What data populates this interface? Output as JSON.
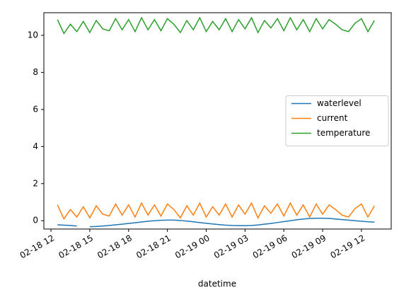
{
  "chart_data": {
    "type": "line",
    "x": [
      0.5,
      1,
      1.5,
      2,
      2.5,
      3,
      3.5,
      4,
      4.5,
      5,
      5.5,
      6,
      6.5,
      7,
      7.5,
      8,
      8.5,
      9,
      9.5,
      10,
      10.5,
      11,
      11.5,
      12,
      12.5,
      13,
      13.5,
      14,
      14.5,
      15,
      15.5,
      16,
      16.5,
      17,
      17.5,
      18,
      18.5,
      19,
      19.5,
      20,
      20.5,
      21,
      21.5,
      22,
      22.5,
      23,
      23.5,
      24,
      24.5,
      25
    ],
    "series": [
      {
        "name": "waterlevel",
        "color": "#1f77b4",
        "values": [
          -0.22,
          -0.24,
          -0.26,
          -0.29,
          null,
          -0.32,
          -0.31,
          -0.29,
          -0.26,
          -0.22,
          -0.19,
          -0.15,
          -0.11,
          -0.07,
          -0.03,
          0.0,
          0.02,
          0.03,
          0.03,
          0.01,
          -0.02,
          -0.06,
          -0.1,
          -0.14,
          -0.18,
          -0.21,
          -0.24,
          -0.26,
          -0.27,
          -0.27,
          -0.26,
          -0.23,
          -0.19,
          -0.15,
          -0.1,
          -0.05,
          0.0,
          0.05,
          0.09,
          0.12,
          0.13,
          0.13,
          0.12,
          0.09,
          0.06,
          0.03,
          0.0,
          -0.03,
          -0.06,
          -0.08
        ]
      },
      {
        "name": "current",
        "color": "#ff7f0e",
        "values": [
          0.85,
          0.1,
          0.6,
          0.2,
          0.75,
          0.15,
          0.8,
          0.35,
          0.25,
          0.9,
          0.3,
          0.85,
          0.2,
          0.95,
          0.3,
          0.85,
          0.25,
          0.9,
          0.6,
          0.15,
          0.8,
          0.3,
          0.95,
          0.2,
          0.75,
          0.3,
          0.9,
          0.2,
          0.85,
          0.35,
          0.95,
          0.15,
          0.8,
          0.4,
          0.9,
          0.25,
          0.95,
          0.3,
          0.85,
          0.2,
          0.9,
          0.35,
          0.85,
          0.6,
          0.3,
          0.2,
          0.65,
          0.9,
          0.2,
          0.8
        ]
      },
      {
        "name": "temperature",
        "color": "#2ca02c",
        "values": [
          10.85,
          10.1,
          10.6,
          10.2,
          10.75,
          10.15,
          10.8,
          10.35,
          10.25,
          10.9,
          10.3,
          10.85,
          10.2,
          10.95,
          10.3,
          10.85,
          10.25,
          10.9,
          10.6,
          10.15,
          10.8,
          10.3,
          10.95,
          10.2,
          10.75,
          10.3,
          10.9,
          10.2,
          10.85,
          10.35,
          10.95,
          10.15,
          10.8,
          10.4,
          10.9,
          10.25,
          10.95,
          10.3,
          10.85,
          10.2,
          10.9,
          10.35,
          10.85,
          10.6,
          10.3,
          10.2,
          10.65,
          10.9,
          10.2,
          10.8
        ]
      }
    ],
    "xlabel": "datetime",
    "xlim": [
      -0.55,
      26.3
    ],
    "xticks": [
      {
        "value": 0,
        "label": "02-18 12"
      },
      {
        "value": 3,
        "label": "02-18 15"
      },
      {
        "value": 6,
        "label": "02-18 18"
      },
      {
        "value": 9,
        "label": "02-18 21"
      },
      {
        "value": 12,
        "label": "02-19 00"
      },
      {
        "value": 15,
        "label": "02-19 03"
      },
      {
        "value": 18,
        "label": "02-19 06"
      },
      {
        "value": 21,
        "label": "02-19 09"
      },
      {
        "value": 24,
        "label": "02-19 12"
      }
    ],
    "ylim": [
      -0.45,
      11.22
    ],
    "yticks": [
      0,
      2,
      4,
      6,
      8,
      10
    ],
    "legend": "center right"
  }
}
